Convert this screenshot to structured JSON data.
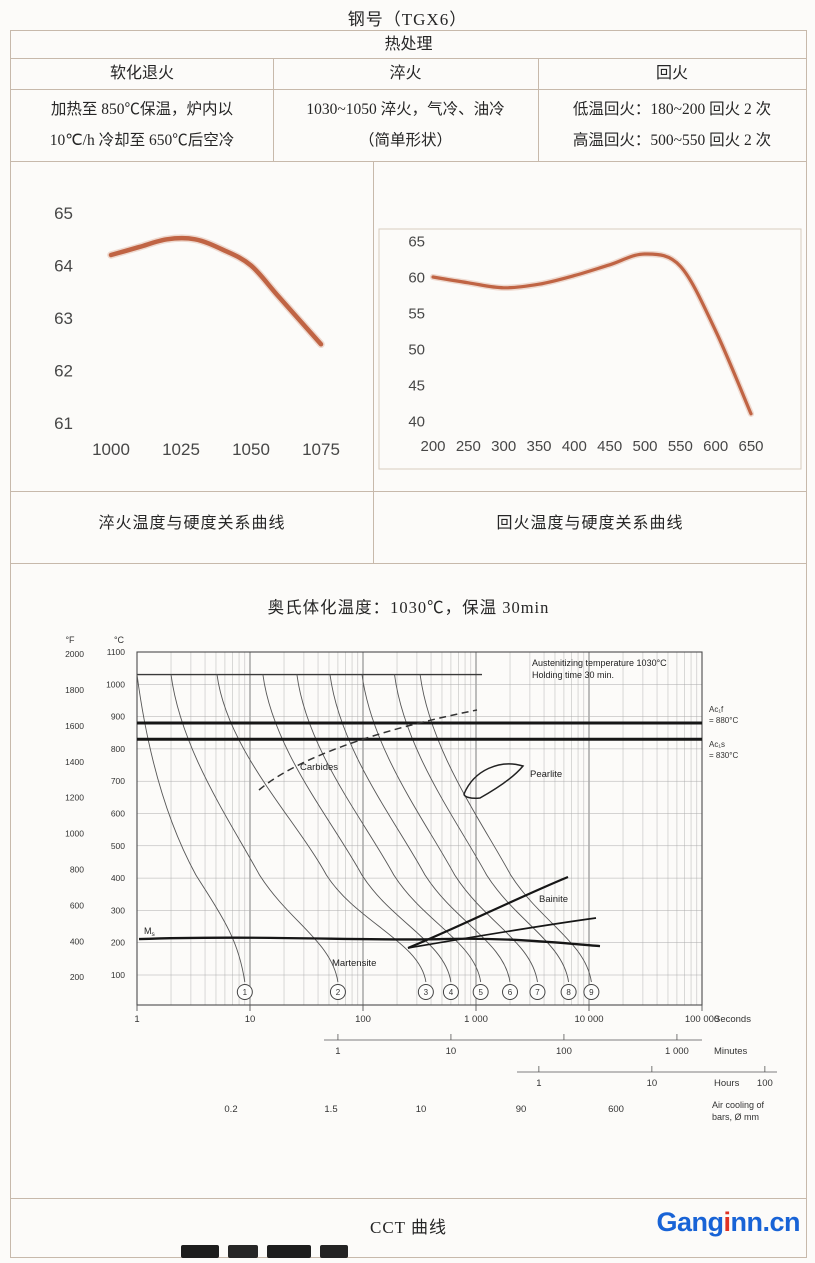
{
  "page": {
    "title": "钢号（TGX6）"
  },
  "watermark": {
    "part1": "Gang",
    "accent": "i",
    "part2": "nn.cn"
  },
  "table": {
    "header": "热处理",
    "columns": [
      {
        "label": "软化退火",
        "detail_lines": [
          "加热至 850℃保温，炉内以",
          "10℃/h 冷却至 650℃后空冷"
        ]
      },
      {
        "label": "淬火",
        "detail_lines": [
          "1030~1050 淬火，气冷、油冷",
          "（简单形状）"
        ]
      },
      {
        "label": "回火",
        "detail_lines": [
          "低温回火：180~200 回火 2 次",
          "高温回火：500~550 回火 2 次"
        ]
      }
    ]
  },
  "chart_data": [
    {
      "type": "line",
      "title": "淬火温度与硬度关系曲线",
      "x": [
        1000,
        1010,
        1020,
        1030,
        1040,
        1050,
        1060,
        1075
      ],
      "y": [
        64.2,
        64.35,
        64.5,
        64.5,
        64.3,
        64.0,
        63.4,
        62.5
      ],
      "x_ticks": [
        1000,
        1025,
        1050,
        1075
      ],
      "y_ticks": [
        65,
        64,
        63,
        62,
        61
      ],
      "xlim": [
        1000,
        1075
      ],
      "ylim": [
        61,
        65
      ],
      "grid": false,
      "color": "#bd5e3c"
    },
    {
      "type": "line",
      "title": "回火温度与硬度关系曲线",
      "x": [
        200,
        250,
        300,
        350,
        400,
        450,
        500,
        550,
        600,
        650
      ],
      "y": [
        60,
        59.2,
        58.5,
        59,
        60.2,
        61.7,
        63.2,
        61.5,
        52.5,
        41
      ],
      "x_ticks": [
        200,
        250,
        300,
        350,
        400,
        450,
        500,
        550,
        600,
        650
      ],
      "y_ticks": [
        65,
        60,
        55,
        50,
        45,
        40
      ],
      "xlim": [
        200,
        650
      ],
      "ylim": [
        40,
        65
      ],
      "grid": false,
      "color": "#bd5e3c"
    },
    {
      "type": "cct",
      "section_title": "奥氏体化温度：1030℃，保温 30min",
      "caption": "CCT 曲线",
      "annotation": [
        "Austenitizing temperature 1030°C",
        "Holding time 30 min."
      ],
      "y_axis_f": {
        "label": "°F",
        "ticks": [
          2000,
          1800,
          1600,
          1400,
          1200,
          1000,
          800,
          600,
          400,
          200
        ]
      },
      "y_axis_c": {
        "label": "°C",
        "ticks": [
          1100,
          1000,
          900,
          800,
          700,
          600,
          500,
          400,
          300,
          200,
          100
        ]
      },
      "x_axes": {
        "seconds": {
          "ticks": [
            "1",
            "10",
            "100",
            "1 000",
            "10 000",
            "100 000"
          ],
          "label": "Seconds"
        },
        "minutes": {
          "ticks": [
            "1",
            "10",
            "100",
            "1 000"
          ],
          "label": "Minutes"
        },
        "hours": {
          "ticks": [
            "1",
            "10",
            "100"
          ],
          "label": "Hours"
        },
        "air_cooling": {
          "ticks": [
            "0.2",
            "1.5",
            "10",
            "90",
            "600"
          ],
          "label": [
            "Air cooling of",
            "bars, Ø mm"
          ]
        }
      },
      "critical_lines": [
        {
          "name": "Ac1f",
          "temp_c": 880,
          "label_lines": [
            "Ac₁f",
            "= 880°C"
          ]
        },
        {
          "name": "Ac1s",
          "temp_c": 830,
          "label_lines": [
            "Ac₁s",
            "= 830°C"
          ]
        }
      ],
      "austenitizing_temp_c": 1030,
      "ms_temp_c": 205,
      "region_labels": {
        "carbides": "Carbides",
        "pearlite": "Pearlite",
        "bainite": "Bainite",
        "martensite": "Martensite",
        "ms": "Ms"
      },
      "cooling_curves": [
        {
          "number": "1",
          "t_top_s": 1.0,
          "t_bottom_s": 9
        },
        {
          "number": "2",
          "t_top_s": 2.0,
          "t_bottom_s": 60
        },
        {
          "number": "3",
          "t_top_s": 5.1,
          "t_bottom_s": 360
        },
        {
          "number": "4",
          "t_top_s": 13,
          "t_bottom_s": 600
        },
        {
          "number": "5",
          "t_top_s": 26,
          "t_bottom_s": 1100
        },
        {
          "number": "6",
          "t_top_s": 51,
          "t_bottom_s": 2000
        },
        {
          "number": "7",
          "t_top_s": 98,
          "t_bottom_s": 3500
        },
        {
          "number": "8",
          "t_top_s": 190,
          "t_bottom_s": 6600
        },
        {
          "number": "9",
          "t_top_s": 320,
          "t_bottom_s": 10500
        }
      ]
    }
  ]
}
